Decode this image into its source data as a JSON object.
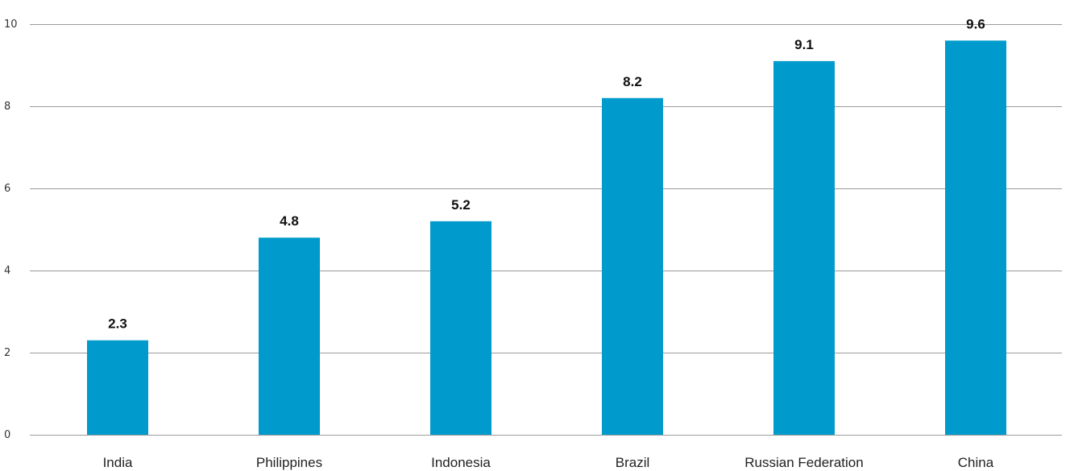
{
  "chart_data": {
    "type": "bar",
    "categories": [
      "India",
      "Philippines",
      "Indonesia",
      "Brazil",
      "Russian Federation",
      "China"
    ],
    "values": [
      2.3,
      4.8,
      5.2,
      8.2,
      9.1,
      9.6
    ],
    "data_labels": [
      "2.3",
      "4.8",
      "5.2",
      "8.2",
      "9.1",
      "9.6"
    ],
    "y_ticks": [
      0,
      2,
      4,
      6,
      8,
      10
    ],
    "ylim": [
      0,
      10
    ],
    "grid": "horizontal",
    "legend": "none",
    "bar_color": "#009bcc",
    "title": "",
    "xlabel": "",
    "ylabel": ""
  }
}
